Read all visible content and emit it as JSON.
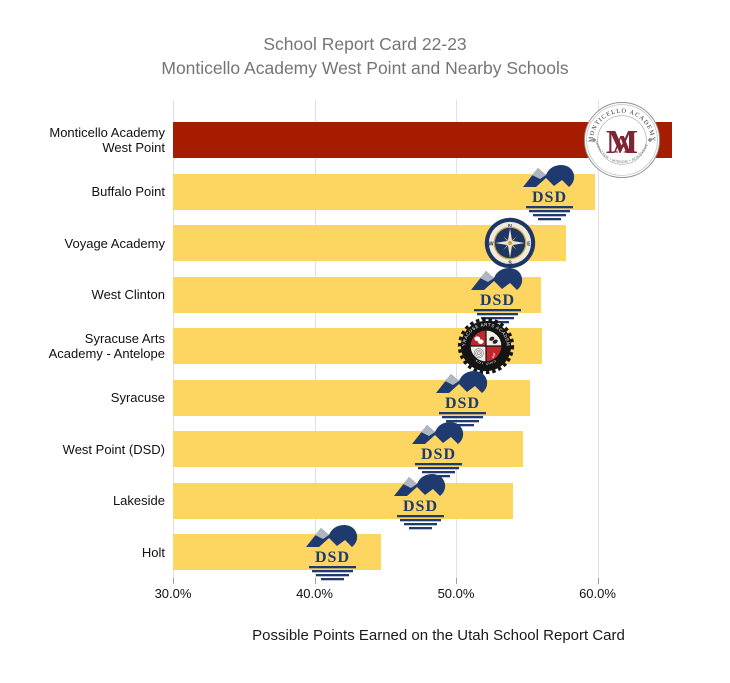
{
  "chart_data": {
    "type": "bar",
    "orientation": "horizontal",
    "title": "School Report Card 22-23",
    "subtitle": "Monticello Academy West Point and Nearby Schools",
    "xlabel": "Possible Points Earned on the Utah School Report Card",
    "categories": [
      "Monticello Academy\nWest Point",
      "Buffalo Point",
      "Voyage Academy",
      "West Clinton",
      "Syracuse Arts\nAcademy - Antelope",
      "Syracuse",
      "West Point (DSD)",
      "Lakeside",
      "Holt"
    ],
    "values": [
      65.3,
      59.8,
      57.8,
      56.0,
      56.1,
      55.2,
      54.7,
      54.0,
      44.7
    ],
    "value_unit": "percent of possible points",
    "xlim": [
      30,
      67.5
    ],
    "x_ticks": [
      {
        "value": 30,
        "label": "30.0%"
      },
      {
        "value": 40,
        "label": "40.0%"
      },
      {
        "value": 50,
        "label": "50.0%"
      },
      {
        "value": 60,
        "label": "60.0%"
      }
    ],
    "grid": "vertical-gridlines",
    "legend": "none",
    "highlight_index": 0,
    "row_logos": [
      "monticello",
      "dsd",
      "voyage",
      "dsd",
      "syracuse_arts",
      "dsd",
      "dsd",
      "dsd",
      "dsd"
    ]
  },
  "logos": {
    "monticello": {
      "name": "monticello-academy-seal",
      "arc_text": "MONTICELLO ACADEMY",
      "motto_text": "CHARACTER • WISDOM • ACHIEVEMENT",
      "monogram": "MA"
    },
    "dsd": {
      "name": "davis-school-district-logo",
      "text": "DSD"
    },
    "voyage": {
      "name": "voyage-academy-compass",
      "cardinal": {
        "n": "N",
        "e": "E",
        "s": "S",
        "w": "W"
      }
    },
    "syracuse_arts": {
      "name": "syracuse-arts-academy-badge",
      "arc_text": "SYRACUSE ARTS ACADEMY",
      "bottom_text": "EST 2005",
      "music_glyph": "♪"
    }
  },
  "colors": {
    "bar_default": "#FDD662",
    "bar_highlight": "#A61C00",
    "title_text": "#757575",
    "gridline": "#E0E0E0",
    "tick_mark": "#9E9E9E",
    "label_text": "#111111",
    "navy": "#1E3A6E",
    "logo_gray_peak": "#AEB6BF",
    "seal_maroon": "#7E2434",
    "badge_black": "#141414",
    "badge_red": "#C0272D",
    "badge_cream": "#F2EFE9",
    "compass_navy": "#1E3664",
    "compass_gold": "#C9A44C",
    "compass_cream": "#EFEAD9"
  }
}
